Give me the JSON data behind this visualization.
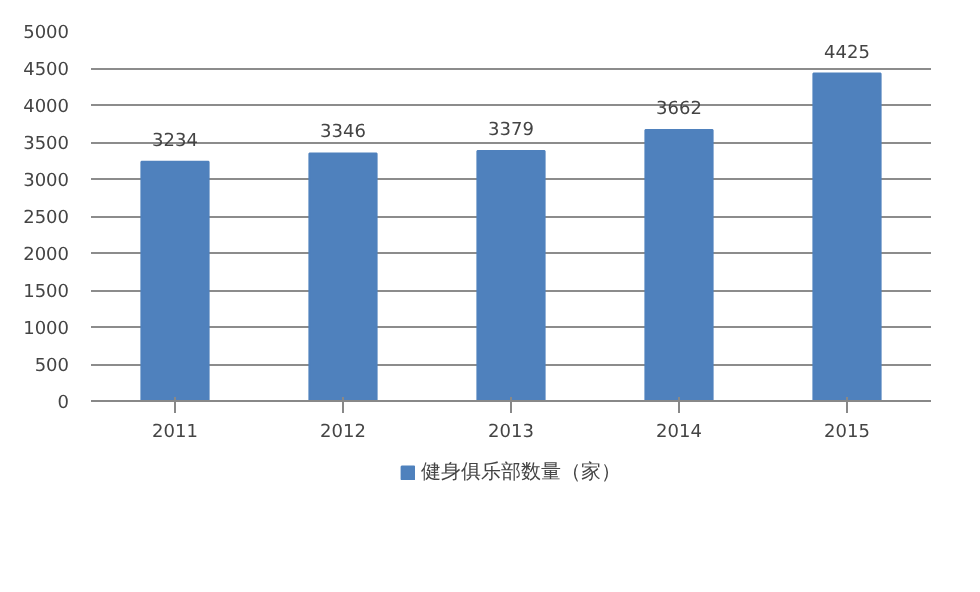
{
  "chart_data": {
    "type": "bar",
    "categories": [
      "2011",
      "2012",
      "2013",
      "2014",
      "2015"
    ],
    "series": [
      {
        "name": "健身俱乐部数量（家）",
        "color": "#4f81bd",
        "values": [
          3234,
          3346,
          3379,
          3662,
          4425
        ]
      }
    ],
    "ylim": [
      0,
      5000
    ],
    "yticks": [
      0,
      500,
      1000,
      1500,
      2000,
      2500,
      3000,
      3500,
      4000,
      4500,
      5000
    ],
    "grid": "y",
    "legend": "bottom",
    "data_labels": true
  }
}
